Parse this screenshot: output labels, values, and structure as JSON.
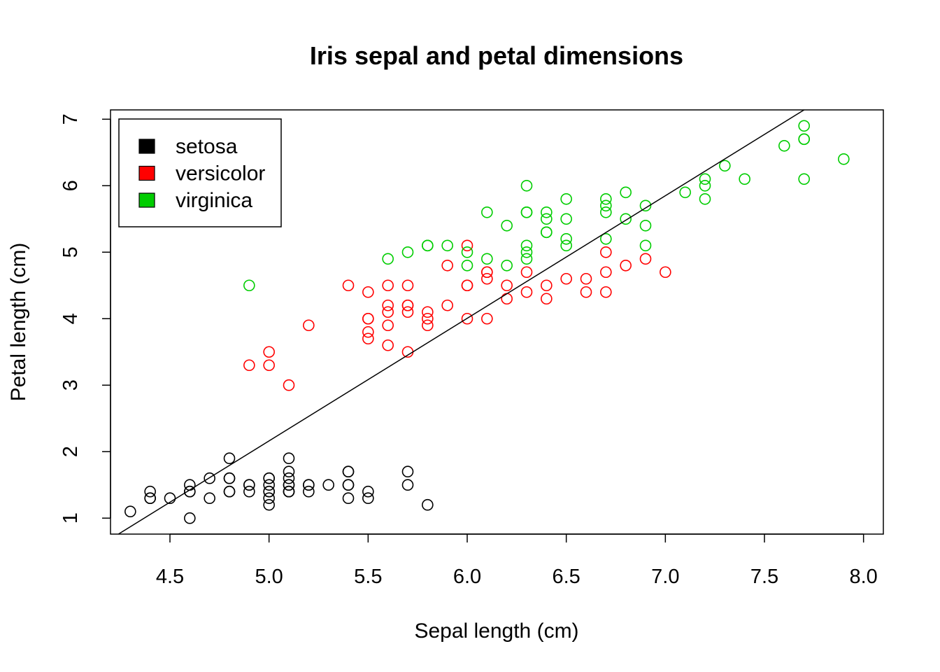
{
  "chart_data": {
    "type": "scatter",
    "title": "Iris sepal and petal dimensions",
    "xlabel": "Sepal length (cm)",
    "ylabel": "Petal length (cm)",
    "xlim": [
      4.2,
      8.1
    ],
    "ylim": [
      0.76,
      7.14
    ],
    "x_ticks": [
      "4.5",
      "5.0",
      "5.5",
      "6.0",
      "6.5",
      "7.0",
      "7.5",
      "8.0"
    ],
    "y_ticks": [
      "1",
      "2",
      "3",
      "4",
      "5",
      "6",
      "7"
    ],
    "grid": false,
    "legend_position": "top-left",
    "marker": "open-circle",
    "series": [
      {
        "name": "setosa",
        "color": "#000000",
        "points": [
          [
            4.3,
            1.1
          ],
          [
            4.4,
            1.4
          ],
          [
            4.4,
            1.3
          ],
          [
            4.4,
            1.3
          ],
          [
            4.5,
            1.3
          ],
          [
            4.6,
            1.0
          ],
          [
            4.6,
            1.5
          ],
          [
            4.6,
            1.4
          ],
          [
            4.6,
            1.4
          ],
          [
            4.7,
            1.6
          ],
          [
            4.7,
            1.3
          ],
          [
            4.8,
            1.9
          ],
          [
            4.8,
            1.6
          ],
          [
            4.8,
            1.6
          ],
          [
            4.8,
            1.4
          ],
          [
            4.8,
            1.4
          ],
          [
            4.9,
            1.5
          ],
          [
            4.9,
            1.4
          ],
          [
            4.9,
            1.5
          ],
          [
            5.0,
            1.6
          ],
          [
            5.0,
            1.5
          ],
          [
            5.0,
            1.4
          ],
          [
            5.0,
            1.4
          ],
          [
            5.0,
            1.6
          ],
          [
            5.0,
            1.3
          ],
          [
            5.0,
            1.2
          ],
          [
            5.1,
            1.9
          ],
          [
            5.1,
            1.7
          ],
          [
            5.1,
            1.6
          ],
          [
            5.1,
            1.5
          ],
          [
            5.1,
            1.5
          ],
          [
            5.1,
            1.4
          ],
          [
            5.1,
            1.4
          ],
          [
            5.1,
            1.4
          ],
          [
            5.2,
            1.5
          ],
          [
            5.2,
            1.4
          ],
          [
            5.2,
            1.5
          ],
          [
            5.3,
            1.5
          ],
          [
            5.4,
            1.7
          ],
          [
            5.4,
            1.7
          ],
          [
            5.4,
            1.5
          ],
          [
            5.4,
            1.5
          ],
          [
            5.4,
            1.3
          ],
          [
            5.5,
            1.4
          ],
          [
            5.5,
            1.3
          ],
          [
            5.7,
            1.7
          ],
          [
            5.7,
            1.5
          ],
          [
            5.8,
            1.2
          ]
        ]
      },
      {
        "name": "versicolor",
        "color": "#ff0000",
        "points": [
          [
            4.9,
            3.3
          ],
          [
            5.0,
            3.5
          ],
          [
            5.0,
            3.3
          ],
          [
            5.1,
            3.0
          ],
          [
            5.2,
            3.9
          ],
          [
            5.4,
            4.5
          ],
          [
            5.5,
            4.4
          ],
          [
            5.5,
            4.0
          ],
          [
            5.5,
            4.0
          ],
          [
            5.5,
            3.8
          ],
          [
            5.5,
            3.7
          ],
          [
            5.6,
            4.5
          ],
          [
            5.6,
            4.2
          ],
          [
            5.6,
            4.1
          ],
          [
            5.6,
            3.9
          ],
          [
            5.6,
            3.6
          ],
          [
            5.7,
            4.5
          ],
          [
            5.7,
            4.2
          ],
          [
            5.7,
            4.2
          ],
          [
            5.7,
            4.1
          ],
          [
            5.7,
            3.5
          ],
          [
            5.8,
            4.1
          ],
          [
            5.8,
            4.0
          ],
          [
            5.8,
            3.9
          ],
          [
            5.9,
            4.8
          ],
          [
            5.9,
            4.2
          ],
          [
            6.0,
            5.1
          ],
          [
            6.0,
            4.5
          ],
          [
            6.0,
            4.5
          ],
          [
            6.0,
            4.0
          ],
          [
            6.1,
            4.7
          ],
          [
            6.1,
            4.7
          ],
          [
            6.1,
            4.6
          ],
          [
            6.1,
            4.0
          ],
          [
            6.2,
            4.5
          ],
          [
            6.2,
            4.3
          ],
          [
            6.3,
            4.7
          ],
          [
            6.3,
            4.4
          ],
          [
            6.4,
            4.5
          ],
          [
            6.4,
            4.3
          ],
          [
            6.5,
            4.6
          ],
          [
            6.6,
            4.6
          ],
          [
            6.6,
            4.4
          ],
          [
            6.7,
            5.0
          ],
          [
            6.7,
            4.7
          ],
          [
            6.7,
            4.4
          ],
          [
            6.8,
            4.8
          ],
          [
            6.9,
            4.9
          ],
          [
            7.0,
            4.7
          ]
        ]
      },
      {
        "name": "virginica",
        "color": "#00cd00",
        "points": [
          [
            4.9,
            4.5
          ],
          [
            5.6,
            4.9
          ],
          [
            5.7,
            5.0
          ],
          [
            5.8,
            5.1
          ],
          [
            5.8,
            5.1
          ],
          [
            5.9,
            5.1
          ],
          [
            6.0,
            5.0
          ],
          [
            6.0,
            4.8
          ],
          [
            6.1,
            5.6
          ],
          [
            6.1,
            4.9
          ],
          [
            6.2,
            5.4
          ],
          [
            6.2,
            4.8
          ],
          [
            6.3,
            6.0
          ],
          [
            6.3,
            5.6
          ],
          [
            6.3,
            5.6
          ],
          [
            6.3,
            5.1
          ],
          [
            6.3,
            5.0
          ],
          [
            6.3,
            4.9
          ],
          [
            6.4,
            5.6
          ],
          [
            6.4,
            5.5
          ],
          [
            6.4,
            5.3
          ],
          [
            6.4,
            5.3
          ],
          [
            6.5,
            5.8
          ],
          [
            6.5,
            5.5
          ],
          [
            6.5,
            5.2
          ],
          [
            6.5,
            5.1
          ],
          [
            6.7,
            5.8
          ],
          [
            6.7,
            5.7
          ],
          [
            6.7,
            5.6
          ],
          [
            6.7,
            5.2
          ],
          [
            6.8,
            5.9
          ],
          [
            6.8,
            5.5
          ],
          [
            6.9,
            5.7
          ],
          [
            6.9,
            5.4
          ],
          [
            6.9,
            5.1
          ],
          [
            7.1,
            5.9
          ],
          [
            7.2,
            6.1
          ],
          [
            7.2,
            6.0
          ],
          [
            7.2,
            5.8
          ],
          [
            7.3,
            6.3
          ],
          [
            7.4,
            6.1
          ],
          [
            7.6,
            6.6
          ],
          [
            7.7,
            6.9
          ],
          [
            7.7,
            6.7
          ],
          [
            7.7,
            6.7
          ],
          [
            7.7,
            6.1
          ],
          [
            7.9,
            6.4
          ]
        ]
      }
    ],
    "reference_line": {
      "type": "regression",
      "points": [
        [
          4.24,
          0.76
        ],
        [
          7.7,
          7.14
        ]
      ]
    }
  }
}
